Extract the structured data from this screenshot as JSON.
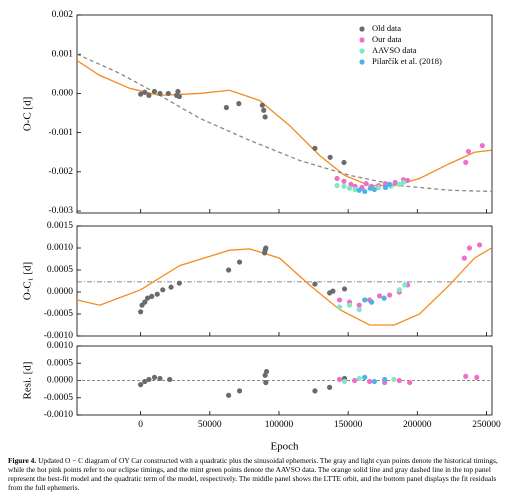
{
  "chart_data": [
    {
      "type": "scatter",
      "ylabel": "O-C [d]",
      "xlim": [
        -46000,
        254000
      ],
      "xticks": [
        0,
        50000,
        100000,
        150000,
        200000,
        250000
      ],
      "ylim": [
        -0.00305,
        0.002
      ],
      "yticks": [
        0.002,
        0.001,
        {
          "value": 0,
          "label": "0.000"
        },
        -0.001,
        -0.002,
        -0.003
      ],
      "legend": "upper right",
      "series": [
        {
          "type": "line",
          "color": "#f58a1f",
          "x": [
            -46000,
            -29600,
            -7900,
            13700,
            42600,
            64300,
            86000,
            107700,
            129300,
            147400,
            165500,
            183500,
            201600,
            223300,
            241300,
            253600
          ],
          "values": [
            0.00084,
            0.00046,
            0.00013,
            -5e-05,
            0,
            8e-05,
            -0.00018,
            -0.00082,
            -0.00158,
            -0.00209,
            -0.00235,
            -0.00235,
            -0.00217,
            -0.00179,
            -0.0015,
            -0.00145
          ]
        },
        {
          "type": "line",
          "dash": true,
          "color": "#888888",
          "x": [
            -46000,
            -15000,
            14000,
            43000,
            79000,
            115000,
            151000,
            187000,
            223000,
            254000
          ],
          "values": [
            0.001,
            0.00051,
            -5e-05,
            -0.00064,
            -0.0012,
            -0.00171,
            -0.00209,
            -0.00235,
            -0.00247,
            -0.0025
          ]
        },
        {
          "name": "Old data",
          "color": "#6b6b6b",
          "x": [
            0,
            3000,
            6000,
            10000,
            14000,
            20000,
            26000,
            27000,
            28000,
            62000,
            71000,
            88000,
            89000,
            90000,
            126000,
            137000,
            147000
          ],
          "values": [
            -2e-05,
            3e-05,
            -5e-05,
            5e-05,
            0,
            0,
            -5e-05,
            5e-05,
            -8e-05,
            -0.00036,
            -0.00026,
            -0.0003,
            -0.00043,
            -0.0006,
            -0.0014,
            -0.00163,
            -0.00176
          ]
        },
        {
          "name": "Our data",
          "color": "#f06ec8",
          "x": [
            142000,
            147000,
            152000,
            155000,
            160000,
            163000,
            167000,
            172000,
            177000,
            184000,
            190000,
            193000,
            235000,
            237000,
            247000
          ],
          "values": [
            -0.00217,
            -0.00224,
            -0.00232,
            -0.00237,
            -0.0024,
            -0.0023,
            -0.00237,
            -0.00235,
            -0.0023,
            -0.00227,
            -0.0022,
            -0.00222,
            -0.00176,
            -0.00148,
            -0.00133
          ]
        },
        {
          "name": "AAVSO data",
          "color": "#80e8c4",
          "x": [
            142000,
            147000,
            151000,
            155000,
            172000,
            181000,
            187000,
            190000
          ],
          "values": [
            -0.00235,
            -0.00237,
            -0.00242,
            -0.00245,
            -0.0024,
            -0.00237,
            -0.00232,
            -0.00227
          ]
        },
        {
          "name": "Pilarčík et al. (2018)",
          "color": "#4ab4e6",
          "x": [
            158000,
            162000,
            166000,
            169000,
            177000,
            180000
          ],
          "values": [
            -0.00247,
            -0.0025,
            -0.00242,
            -0.00245,
            -0.0024,
            -0.00232
          ]
        }
      ]
    },
    {
      "type": "scatter",
      "ylabel": "O-C₁ [d]",
      "xlim": [
        -46000,
        254000
      ],
      "xticks": [
        0,
        50000,
        100000,
        150000,
        200000,
        250000
      ],
      "ylim": [
        -0.001,
        0.0015
      ],
      "yticks": [
        0.0015,
        {
          "value": 0.001,
          "label": "0.0010"
        },
        -0.0005,
        {
          "value": 0,
          "label": "0.0000"
        },
        0.0005,
        {
          "value": -0.001,
          "label": "-0.0010"
        }
      ],
      "hline": 0.00023,
      "series": [
        {
          "type": "line",
          "color": "#f58a1f",
          "x": [
            -46000,
            -29600,
            0,
            28200,
            64300,
            78800,
            100400,
            122100,
            143800,
            165500,
            183500,
            201600,
            223300,
            241300,
            253600
          ],
          "values": [
            -0.00018,
            -0.0003,
            5e-05,
            0.0006,
            0.00095,
            0.00098,
            0.00077,
            0.00016,
            -0.0004,
            -0.00075,
            -0.00075,
            -0.0005,
            0.00016,
            0.00077,
            0.001
          ]
        },
        {
          "color": "#6b6b6b",
          "x": [
            0,
            1000,
            3000,
            5000,
            8000,
            12000,
            16000,
            22000,
            28000,
            63600,
            71500,
            89600,
            90000,
            90500,
            126000,
            136600,
            139000,
            147400
          ],
          "values": [
            -0.00045,
            -0.0003,
            -0.00023,
            -0.00014,
            -0.0001,
            -5e-05,
            5e-05,
            0.00011,
            0.0002,
            0.0005,
            0.00068,
            0.00089,
            0.00095,
            0.001,
            0.00018,
            -2e-05,
            2e-05,
            7e-05
          ]
        },
        {
          "color": "#f06ec8",
          "x": [
            143800,
            151000,
            158000,
            165500,
            172700,
            180000,
            187000,
            193000,
            234000,
            237700,
            245000
          ],
          "values": [
            -0.00018,
            -0.00023,
            -0.0003,
            -0.00018,
            -9e-05,
            -7e-05,
            0,
            0.00016,
            0.00077,
            0.001,
            0.00107
          ]
        },
        {
          "color": "#80e8c4",
          "x": [
            143800,
            151000,
            158000,
            187000,
            191000
          ],
          "values": [
            -0.00034,
            -0.0003,
            -0.0004,
            5e-05,
            0.00016
          ]
        },
        {
          "color": "#4ab4e6",
          "x": [
            162000,
            167000,
            176000
          ],
          "values": [
            -0.00018,
            -0.00023,
            -0.00014
          ]
        }
      ]
    },
    {
      "type": "scatter",
      "ylabel": "Resi. [d]",
      "xlabel": "Epoch",
      "xlim": [
        -46000,
        254000
      ],
      "xticks": [
        0,
        50000,
        100000,
        150000,
        200000,
        250000
      ],
      "ylim": [
        -0.001,
        0.001
      ],
      "yticks": [
        {
          "value": 0.001,
          "label": "0.0010"
        },
        0.0005,
        {
          "value": 0,
          "label": "0.0000"
        },
        -0.0005,
        {
          "value": -0.001,
          "label": "-0.0010"
        }
      ],
      "hline": 0,
      "series": [
        {
          "color": "#6b6b6b",
          "x": [
            0,
            3000,
            6000,
            10000,
            14000,
            21000,
            63600,
            71500,
            90000,
            90500,
            91000,
            126000,
            136600,
            147400
          ],
          "values": [
            -0.00012,
            -3e-05,
            3e-05,
            9e-05,
            6e-05,
            3e-05,
            -0.00043,
            -0.0003,
            0.00015,
            -6e-05,
            0.00026,
            -0.0003,
            -0.0002,
            6e-05
          ]
        },
        {
          "color": "#f06ec8",
          "x": [
            143800,
            154700,
            165500,
            176400,
            187000,
            194500,
            235000,
            243000
          ],
          "values": [
            3e-05,
            0,
            -3e-05,
            -6e-05,
            0,
            -6e-05,
            0.00012,
            9e-05
          ]
        },
        {
          "color": "#80e8c4",
          "x": [
            147400,
            158000,
            183000
          ],
          "values": [
            -3e-05,
            6e-05,
            3e-05
          ]
        },
        {
          "color": "#4ab4e6",
          "x": [
            162000,
            169000,
            176400
          ],
          "values": [
            9e-05,
            -3e-05,
            3e-05
          ]
        }
      ]
    }
  ],
  "caption": {
    "label": "Figure 4.",
    "text": "Updated O − C diagram of OY Car constructed with a quadratic plus the sinusoidal ephemeris. The gray and light cyan points denote the historical timings, while the hot pink points refer to our eclipse timings, and the mint green points denote the AAVSO data. The orange solid line and gray dashed line in the top panel represent the best-fit model and the quadratic term of the model, respectively. The middle panel shows the LTTE orbit, and the bottom panel displays the fit residuals from the full ephemeris."
  }
}
